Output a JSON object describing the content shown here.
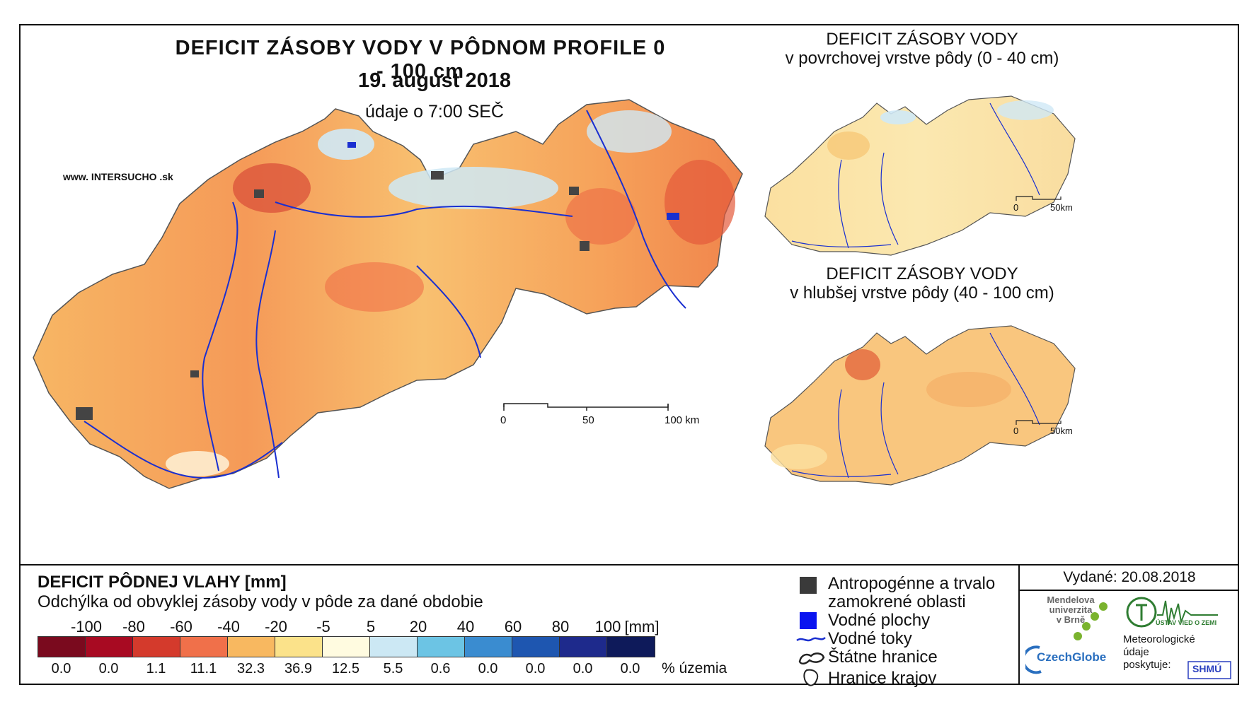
{
  "main": {
    "title": "DEFICIT ZÁSOBY VODY V PÔDNOM PROFILE 0 - 100 cm",
    "date": "19. august 2018",
    "time": "údaje o 7:00 SEČ",
    "website": "www. INTERSUCHO .sk",
    "scale": {
      "labels": [
        "0",
        "50",
        "100 km"
      ]
    }
  },
  "inset_top": {
    "title_line1": "DEFICIT ZÁSOBY VODY",
    "title_line2": "v povrchovej vrstve pôdy (0 - 40 cm)",
    "scale_labels": [
      "0",
      "50km"
    ]
  },
  "inset_bottom": {
    "title_line1": "DEFICIT ZÁSOBY VODY",
    "title_line2": "v hlubšej vrstve pôdy (40 - 100 cm)",
    "scale_labels": [
      "0",
      "50km"
    ]
  },
  "legend": {
    "title": "DEFICIT PÔDNEJ VLAHY [mm]",
    "subtitle": "Odchýlka od obvyklej zásoby vody v pôde za dané obdobie",
    "ticks": [
      "-100",
      "-80",
      "-60",
      "-40",
      "-20",
      "-5",
      "5",
      "20",
      "40",
      "60",
      "80",
      "100",
      "[mm]"
    ],
    "colors": [
      "#7a0a1e",
      "#a80a22",
      "#d43a2c",
      "#f0704a",
      "#f8b860",
      "#fbe28a",
      "#fffbe0",
      "#cce8f4",
      "#6cc4e4",
      "#3a8cd0",
      "#1e56b0",
      "#1e2a8c",
      "#0e1a5a"
    ],
    "percent": [
      "0.0",
      "0.0",
      "1.1",
      "11.1",
      "32.3",
      "36.9",
      "12.5",
      "5.5",
      "0.6",
      "0.0",
      "0.0",
      "0.0",
      "0.0"
    ],
    "percent_unit": "% územia"
  },
  "keys": {
    "urban": "Antropogénne a trvalo",
    "urban2": "zamokrené oblasti",
    "water": "Vodné plochy",
    "rivers": "Vodné toky",
    "borders": "Štátne hranice",
    "regions": "Hranice krajov"
  },
  "publisher": {
    "issued": "Vydané: 20.08.2018",
    "mendel": [
      "Mendelova",
      "univerzita",
      "v Brně"
    ],
    "czechglobe": "CzechGlobe",
    "ustav": "ÚSTAV VIED O ZEMI",
    "meteo": [
      "Meteorologické",
      "údaje",
      "poskytuje:"
    ],
    "shmu": "SHMÚ"
  }
}
